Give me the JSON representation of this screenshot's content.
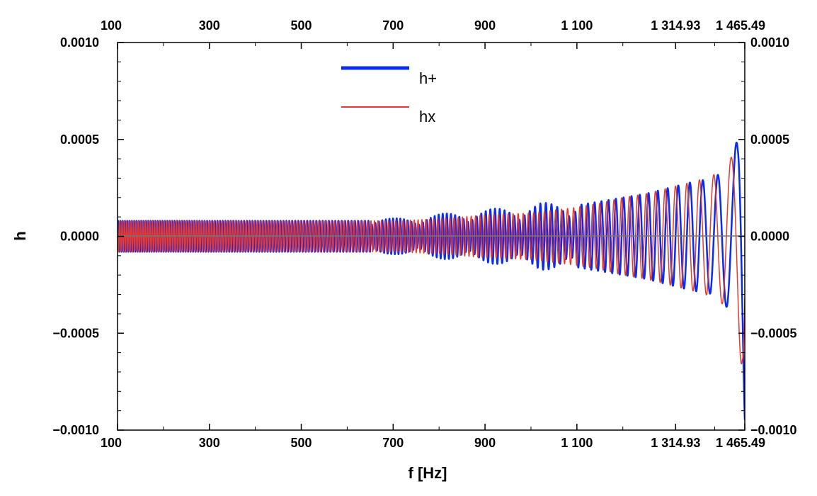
{
  "chart_data": {
    "type": "line",
    "title": "",
    "xlabel": "f [Hz]",
    "ylabel": "h",
    "xlim": [
      100,
      1465.49
    ],
    "ylim": [
      -0.001,
      0.001
    ],
    "x_tick_labels": [
      "100",
      "300",
      "500",
      "700",
      "900",
      "1 100",
      "1 314.93",
      "1 465.49"
    ],
    "x_tick_values": [
      100,
      300,
      500,
      700,
      900,
      1100,
      1314.93,
      1465.49
    ],
    "y_tick_labels": [
      "0.0010",
      "0.0005",
      "0.0000",
      "−0.0005",
      "−0.0010"
    ],
    "y_tick_values": [
      0.001,
      0.0005,
      0.0,
      -0.0005,
      -0.001
    ],
    "grid": false,
    "legend_position": "top-center",
    "series": [
      {
        "name": "h+",
        "color": "#0a2cf0",
        "envelope": {
          "x": [
            100,
            200,
            300,
            400,
            500,
            600,
            650,
            700,
            750,
            800,
            850,
            900,
            950,
            1000,
            1020,
            1050,
            1100,
            1150,
            1200,
            1250,
            1300,
            1350,
            1400,
            1420,
            1440,
            1450,
            1460,
            1465.49
          ],
          "amplitude": [
            8e-05,
            8e-05,
            8e-05,
            8e-05,
            8e-05,
            8e-05,
            8e-05,
            8e-05,
            9e-05,
            0.0001,
            0.00011,
            0.00012,
            0.00013,
            0.00014,
            0.00015,
            0.00015,
            0.00016,
            0.00018,
            0.0002,
            0.00022,
            0.00025,
            0.00028,
            0.0003,
            0.00035,
            0.0004,
            0.00052,
            0.00082,
            0.001
          ]
        }
      },
      {
        "name": "hx",
        "color": "#e8392c",
        "envelope": {
          "x": [
            100,
            200,
            300,
            400,
            500,
            600,
            700,
            800,
            900,
            1000,
            1100,
            1150,
            1200,
            1250,
            1300,
            1350,
            1380,
            1410,
            1440,
            1450,
            1460,
            1465.49
          ],
          "amplitude": [
            8e-05,
            8e-05,
            8e-05,
            8e-05,
            8e-05,
            8e-05,
            8e-05,
            9e-05,
            0.00011,
            0.00012,
            0.00015,
            0.00017,
            0.0002,
            0.00022,
            0.00025,
            0.00028,
            0.0003,
            0.00033,
            0.00042,
            0.00052,
            0.0007,
            0.001
          ]
        }
      }
    ]
  }
}
